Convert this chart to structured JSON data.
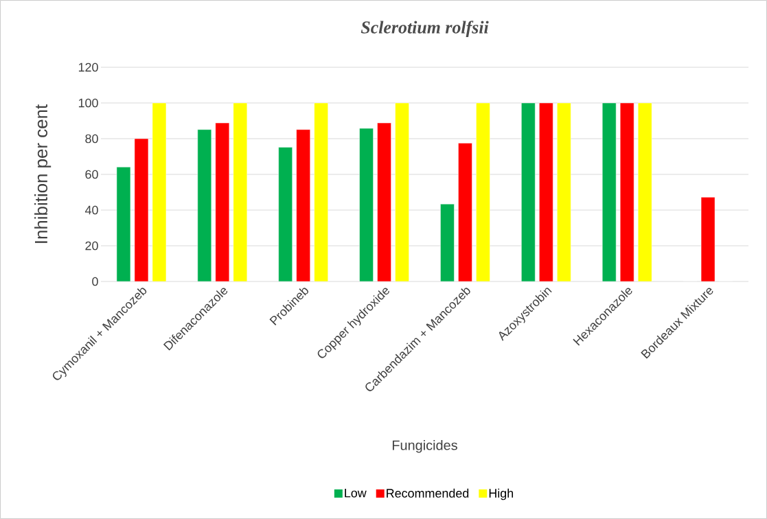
{
  "chart_data": {
    "type": "bar",
    "title": "Sclerotium rolfsii",
    "xlabel": "Fungicides",
    "ylabel": "Inhibition per cent",
    "categories": [
      "Cymoxanil + Mancozeb",
      "Difenaconazole",
      "Probineb",
      "Copper hydroxide",
      "Carbendazim + Mancozeb",
      "Azoxystrobin",
      "Hexaconazole",
      "Bordeaux Mixture"
    ],
    "series": [
      {
        "name": "Low",
        "color": "#00b050",
        "values": [
          64.1,
          85.1,
          75.2,
          85.8,
          43.4,
          100,
          100,
          0
        ]
      },
      {
        "name": "Recommended",
        "color": "#ff0000",
        "values": [
          80,
          88.8,
          85.1,
          88.8,
          77.5,
          100,
          100,
          47.2
        ]
      },
      {
        "name": "High",
        "color": "#ffff00",
        "values": [
          100,
          100,
          100,
          100,
          100,
          100,
          100,
          0
        ]
      }
    ],
    "ylim": [
      0,
      120
    ],
    "yticks": [
      0,
      20,
      40,
      60,
      80,
      100,
      120
    ],
    "grid": "y",
    "legend": "bottom"
  }
}
